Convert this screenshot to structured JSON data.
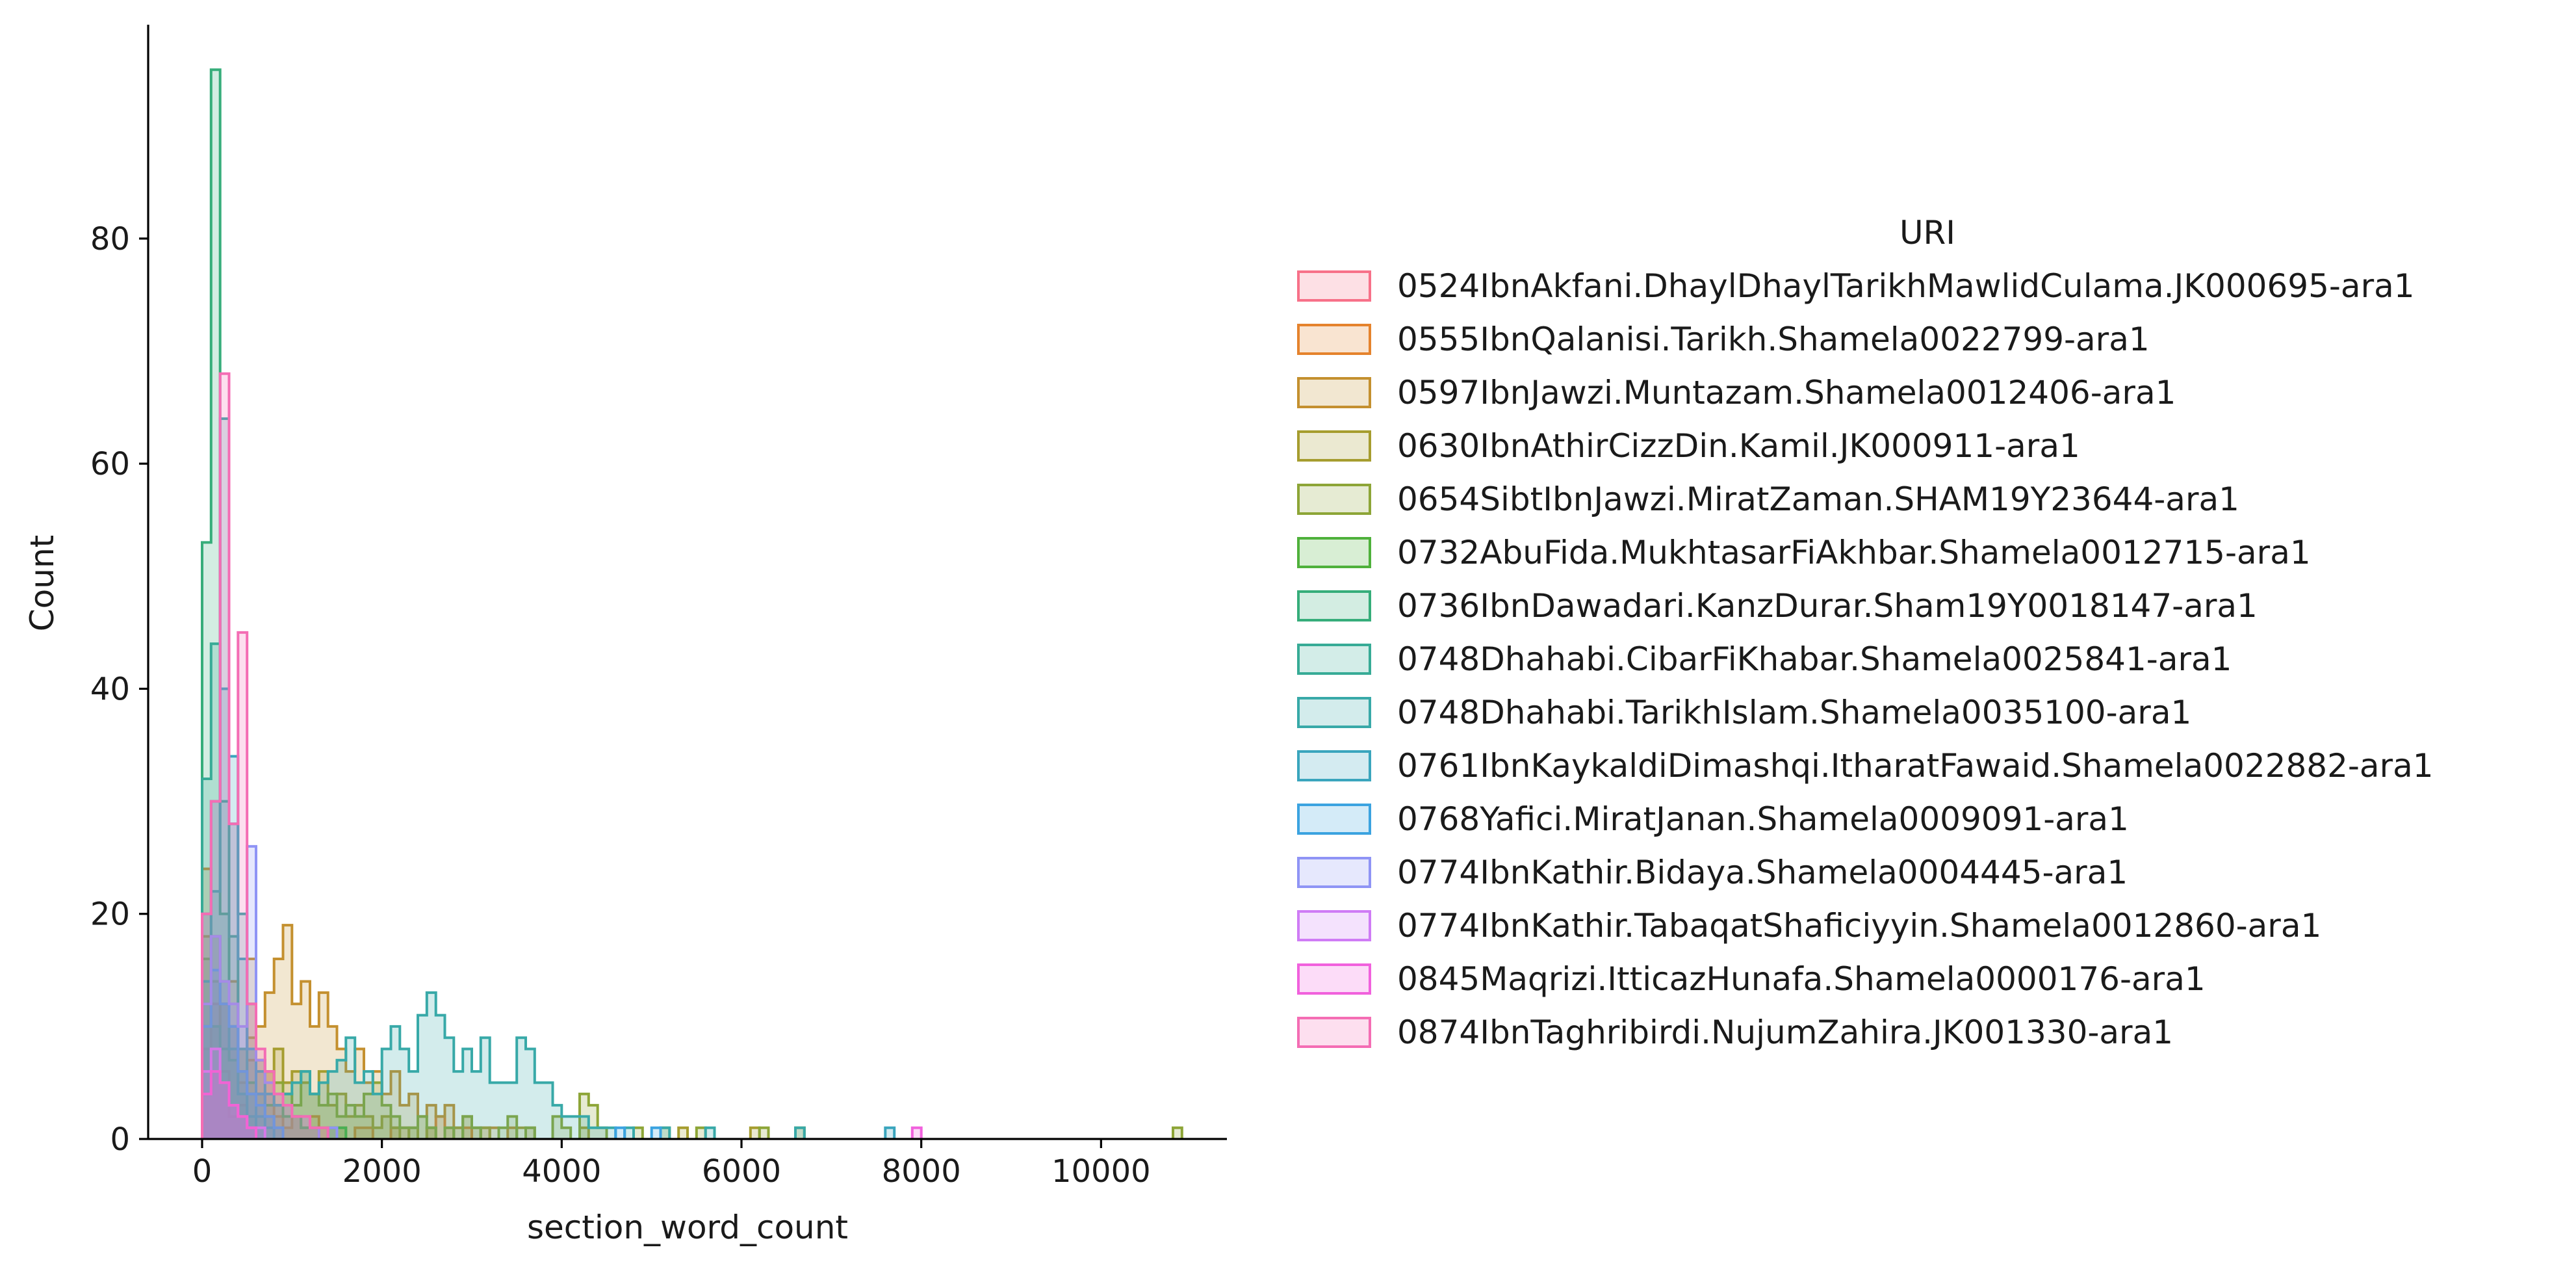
{
  "chart_data": {
    "type": "histogram-step",
    "xlabel": "section_word_count",
    "ylabel": "Count",
    "xlim": [
      -600,
      11400
    ],
    "ylim": [
      0,
      99
    ],
    "xticks": [
      0,
      2000,
      4000,
      6000,
      8000,
      10000
    ],
    "yticks": [
      0,
      20,
      40,
      60,
      80
    ],
    "bin_width": 100,
    "grid": false,
    "legend": {
      "title": "URI",
      "placement": "right, outside plot"
    },
    "series": [
      {
        "name": "0524IbnAkfani.DhaylDhaylTarikhMawlidCulama.JK000695-ara1",
        "color": "#f77189",
        "bins": [
          [
            0,
            8
          ],
          [
            100,
            12
          ],
          [
            200,
            6
          ],
          [
            300,
            2
          ],
          [
            400,
            3
          ],
          [
            500,
            1
          ],
          [
            600,
            1
          ]
        ]
      },
      {
        "name": "0555IbnQalanisi.Tarikh.Shamela0022799-ara1",
        "color": "#e5832d",
        "bins": [
          [
            0,
            24
          ],
          [
            100,
            18
          ],
          [
            200,
            12
          ],
          [
            300,
            8
          ],
          [
            400,
            5
          ],
          [
            500,
            7
          ],
          [
            600,
            6
          ],
          [
            700,
            6
          ],
          [
            800,
            2
          ],
          [
            900,
            1
          ],
          [
            1000,
            2
          ],
          [
            1100,
            1
          ],
          [
            1200,
            2
          ],
          [
            1300,
            1
          ],
          [
            1400,
            1
          ],
          [
            1500,
            1
          ],
          [
            1700,
            1
          ],
          [
            1800,
            1
          ],
          [
            2100,
            1
          ],
          [
            2200,
            1
          ],
          [
            2500,
            1
          ],
          [
            2600,
            2
          ],
          [
            2700,
            1
          ],
          [
            2900,
            1
          ],
          [
            3100,
            1
          ]
        ]
      },
      {
        "name": "0597IbnJawzi.Muntazam.Shamela0012406-ara1",
        "color": "#c4902f",
        "bins": [
          [
            0,
            18
          ],
          [
            100,
            10
          ],
          [
            200,
            12
          ],
          [
            300,
            14
          ],
          [
            400,
            8
          ],
          [
            500,
            16
          ],
          [
            600,
            10
          ],
          [
            700,
            13
          ],
          [
            800,
            16
          ],
          [
            900,
            19
          ],
          [
            1000,
            12
          ],
          [
            1100,
            14
          ],
          [
            1200,
            10
          ],
          [
            1300,
            13
          ],
          [
            1400,
            10
          ],
          [
            1500,
            8
          ],
          [
            1600,
            6
          ],
          [
            1700,
            8
          ],
          [
            1800,
            5
          ],
          [
            1900,
            6
          ],
          [
            2000,
            4
          ],
          [
            2100,
            6
          ],
          [
            2200,
            3
          ],
          [
            2300,
            4
          ],
          [
            2400,
            2
          ],
          [
            2500,
            3
          ],
          [
            2600,
            2
          ],
          [
            2700,
            3
          ],
          [
            2800,
            1
          ],
          [
            2900,
            2
          ],
          [
            3000,
            1
          ],
          [
            3200,
            1
          ],
          [
            3400,
            1
          ],
          [
            3600,
            1
          ]
        ]
      },
      {
        "name": "0630IbnAthirCizzDin.Kamil.JK000911-ara1",
        "color": "#a69d2f",
        "bins": [
          [
            0,
            10
          ],
          [
            100,
            14
          ],
          [
            200,
            12
          ],
          [
            300,
            10
          ],
          [
            400,
            8
          ],
          [
            500,
            9
          ],
          [
            600,
            7
          ],
          [
            700,
            6
          ],
          [
            800,
            8
          ],
          [
            900,
            5
          ],
          [
            1000,
            6
          ],
          [
            1100,
            5
          ],
          [
            1200,
            4
          ],
          [
            1300,
            6
          ],
          [
            1400,
            3
          ],
          [
            1500,
            4
          ],
          [
            1600,
            2
          ],
          [
            1700,
            3
          ],
          [
            1800,
            2
          ],
          [
            1900,
            1
          ],
          [
            2000,
            2
          ],
          [
            2100,
            1
          ],
          [
            2300,
            1
          ],
          [
            2500,
            1
          ],
          [
            2800,
            1
          ],
          [
            3100,
            1
          ],
          [
            3500,
            1
          ],
          [
            4200,
            1
          ],
          [
            5300,
            1
          ],
          [
            6100,
            1
          ],
          [
            6600,
            1
          ]
        ]
      },
      {
        "name": "0654SibtIbnJawzi.MiratZaman.SHAM19Y23644-ara1",
        "color": "#8da537",
        "bins": [
          [
            0,
            16
          ],
          [
            100,
            18
          ],
          [
            200,
            14
          ],
          [
            300,
            10
          ],
          [
            400,
            8
          ],
          [
            500,
            12
          ],
          [
            600,
            7
          ],
          [
            700,
            6
          ],
          [
            800,
            5
          ],
          [
            900,
            4
          ],
          [
            1000,
            3
          ],
          [
            1100,
            6
          ],
          [
            1200,
            4
          ],
          [
            1300,
            3
          ],
          [
            1400,
            4
          ],
          [
            1500,
            2
          ],
          [
            1600,
            3
          ],
          [
            1700,
            2
          ],
          [
            1800,
            4
          ],
          [
            1900,
            5
          ],
          [
            2000,
            3
          ],
          [
            2100,
            2
          ],
          [
            2200,
            1
          ],
          [
            2300,
            1
          ],
          [
            2400,
            2
          ],
          [
            2500,
            1
          ],
          [
            2700,
            1
          ],
          [
            2900,
            2
          ],
          [
            3000,
            1
          ],
          [
            3300,
            1
          ],
          [
            3400,
            2
          ],
          [
            3600,
            1
          ],
          [
            3900,
            2
          ],
          [
            4000,
            1
          ],
          [
            4200,
            4
          ],
          [
            4300,
            3
          ],
          [
            4400,
            1
          ],
          [
            4800,
            1
          ],
          [
            5100,
            1
          ],
          [
            5500,
            1
          ],
          [
            6200,
            1
          ],
          [
            10800,
            1
          ]
        ]
      },
      {
        "name": "0732AbuFida.MukhtasarFiAkhbar.Shamela0012715-ara1",
        "color": "#4fb13b",
        "bins": [
          [
            0,
            12
          ],
          [
            100,
            10
          ],
          [
            200,
            8
          ],
          [
            300,
            7
          ],
          [
            400,
            6
          ],
          [
            500,
            5
          ],
          [
            600,
            4
          ],
          [
            700,
            3
          ],
          [
            800,
            3
          ],
          [
            900,
            2
          ],
          [
            1000,
            2
          ],
          [
            1100,
            1
          ],
          [
            1200,
            1
          ],
          [
            1400,
            1
          ],
          [
            1500,
            1
          ]
        ]
      },
      {
        "name": "0736IbnDawadari.KanzDurar.Sham19Y0018147-ara1",
        "color": "#36ad7a",
        "bins": [
          [
            0,
            53
          ],
          [
            100,
            95
          ],
          [
            200,
            20
          ],
          [
            300,
            8
          ],
          [
            400,
            4
          ],
          [
            500,
            2
          ],
          [
            600,
            1
          ]
        ]
      },
      {
        "name": "0748Dhahabi.CibarFiKhabar.Shamela0025841-ara1",
        "color": "#37ab96",
        "bins": [
          [
            0,
            32
          ],
          [
            100,
            44
          ],
          [
            200,
            30
          ],
          [
            300,
            18
          ],
          [
            400,
            8
          ],
          [
            500,
            4
          ],
          [
            600,
            2
          ],
          [
            700,
            1
          ]
        ]
      },
      {
        "name": "0748Dhahabi.TarikhIslam.Shamela0035100-ara1",
        "color": "#38a9a8",
        "bins": [
          [
            0,
            14
          ],
          [
            100,
            22
          ],
          [
            200,
            64
          ],
          [
            300,
            28
          ],
          [
            400,
            20
          ],
          [
            500,
            8
          ],
          [
            600,
            6
          ],
          [
            700,
            4
          ],
          [
            800,
            3
          ],
          [
            900,
            4
          ],
          [
            1000,
            5
          ],
          [
            1100,
            6
          ],
          [
            1200,
            4
          ],
          [
            1300,
            5
          ],
          [
            1400,
            6
          ],
          [
            1500,
            7
          ],
          [
            1600,
            9
          ],
          [
            1700,
            5
          ],
          [
            1800,
            6
          ],
          [
            1900,
            4
          ],
          [
            2000,
            8
          ],
          [
            2100,
            10
          ],
          [
            2200,
            8
          ],
          [
            2300,
            6
          ],
          [
            2400,
            11
          ],
          [
            2500,
            13
          ],
          [
            2600,
            11
          ],
          [
            2700,
            9
          ],
          [
            2800,
            6
          ],
          [
            2900,
            8
          ],
          [
            3000,
            6
          ],
          [
            3100,
            9
          ],
          [
            3200,
            5
          ],
          [
            3300,
            5
          ],
          [
            3400,
            5
          ],
          [
            3500,
            9
          ],
          [
            3600,
            8
          ],
          [
            3700,
            5
          ],
          [
            3800,
            5
          ],
          [
            3900,
            3
          ],
          [
            4000,
            2
          ],
          [
            4100,
            2
          ],
          [
            4200,
            2
          ],
          [
            4300,
            1
          ],
          [
            4400,
            1
          ],
          [
            4500,
            1
          ],
          [
            4700,
            1
          ],
          [
            5100,
            1
          ],
          [
            5600,
            1
          ],
          [
            6600,
            1
          ]
        ]
      },
      {
        "name": "0761IbnKaykaldiDimashqi.ItharatFawaid.Shamela0022882-ara1",
        "color": "#3aa5bd",
        "bins": [
          [
            0,
            20
          ],
          [
            100,
            30
          ],
          [
            200,
            40
          ],
          [
            300,
            34
          ],
          [
            400,
            16
          ],
          [
            500,
            8
          ],
          [
            600,
            4
          ],
          [
            700,
            2
          ],
          [
            800,
            1
          ],
          [
            7600,
            1
          ]
        ]
      },
      {
        "name": "0768Yafici.MiratJanan.Shamela0009091-ara1",
        "color": "#3ba3e0",
        "bins": [
          [
            0,
            10
          ],
          [
            100,
            15
          ],
          [
            200,
            12
          ],
          [
            300,
            10
          ],
          [
            400,
            6
          ],
          [
            500,
            4
          ],
          [
            600,
            3
          ],
          [
            700,
            2
          ],
          [
            800,
            1
          ],
          [
            4600,
            1
          ],
          [
            5000,
            1
          ]
        ]
      },
      {
        "name": "0774IbnKathir.Bidaya.Shamela0004445-ara1",
        "color": "#8f94f5",
        "bins": [
          [
            0,
            12
          ],
          [
            100,
            18
          ],
          [
            200,
            14
          ],
          [
            300,
            12
          ],
          [
            400,
            10
          ],
          [
            500,
            26
          ],
          [
            600,
            7
          ],
          [
            700,
            5
          ],
          [
            800,
            4
          ],
          [
            900,
            3
          ],
          [
            1000,
            2
          ],
          [
            1100,
            2
          ],
          [
            1200,
            1
          ],
          [
            1400,
            1
          ]
        ]
      },
      {
        "name": "0774IbnKathir.TabaqatShaficiyyin.Shamela0012860-ara1",
        "color": "#cf7cf5",
        "bins": [
          [
            0,
            6
          ],
          [
            100,
            8
          ],
          [
            200,
            5
          ],
          [
            300,
            3
          ],
          [
            400,
            2
          ],
          [
            500,
            1
          ],
          [
            600,
            1
          ]
        ]
      },
      {
        "name": "0845Maqrizi.ItticazHunafa.Shamela0000176-ara1",
        "color": "#f161dd",
        "bins": [
          [
            0,
            4
          ],
          [
            100,
            6
          ],
          [
            200,
            5
          ],
          [
            300,
            3
          ],
          [
            400,
            2
          ],
          [
            500,
            1
          ],
          [
            7900,
            1
          ]
        ]
      },
      {
        "name": "0874IbnTaghribirdi.NujumZahira.JK001330-ara1",
        "color": "#f46db4",
        "bins": [
          [
            0,
            20
          ],
          [
            100,
            30
          ],
          [
            200,
            68
          ],
          [
            300,
            28
          ],
          [
            400,
            45
          ],
          [
            500,
            12
          ],
          [
            600,
            8
          ],
          [
            700,
            6
          ],
          [
            800,
            4
          ],
          [
            900,
            3
          ],
          [
            1000,
            2
          ],
          [
            1100,
            2
          ],
          [
            1200,
            1
          ],
          [
            1300,
            1
          ]
        ]
      }
    ]
  }
}
